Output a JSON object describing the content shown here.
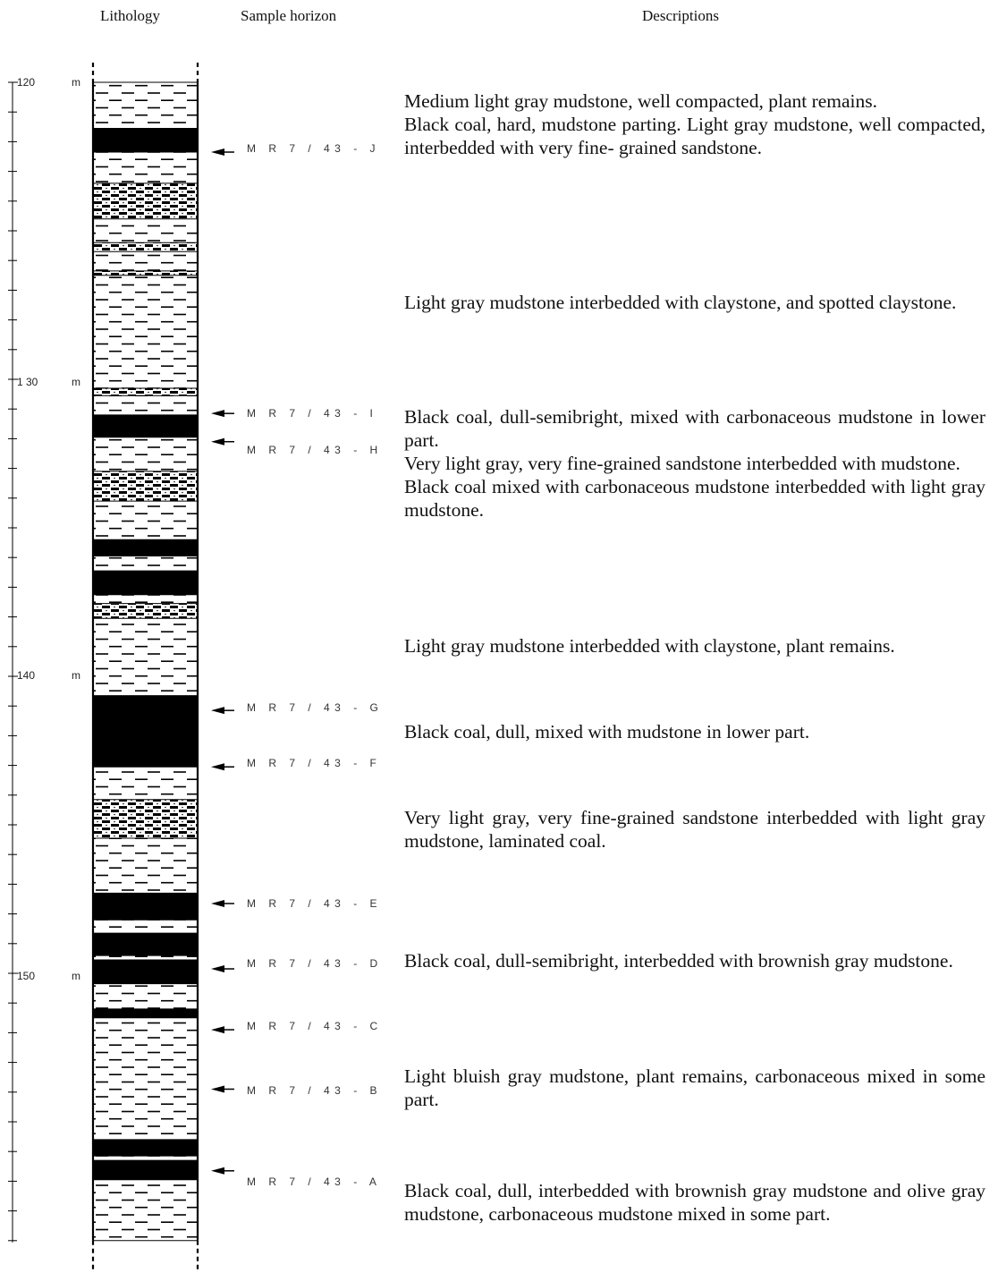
{
  "headers": {
    "lithology": "Lithology",
    "sample_horizon": "Sample horizon",
    "descriptions": "Descriptions"
  },
  "depth_scale": {
    "labels": [
      {
        "depth": 120,
        "label": "120",
        "unit": "m"
      },
      {
        "depth": 130,
        "label": "1 30",
        "unit": "m"
      },
      {
        "depth": 140,
        "label": "140",
        "unit": "m"
      },
      {
        "depth": 150,
        "label": "150",
        "unit": "m"
      }
    ]
  },
  "lithology_legend_types": [
    "mudstone",
    "coal",
    "sandstone"
  ],
  "lithology_column": [
    {
      "top": 120.0,
      "bottom": 121.55,
      "type": "mudstone"
    },
    {
      "top": 121.55,
      "bottom": 122.35,
      "type": "coal"
    },
    {
      "top": 122.35,
      "bottom": 123.4,
      "type": "mudstone"
    },
    {
      "top": 123.4,
      "bottom": 124.6,
      "type": "sandstone"
    },
    {
      "top": 124.6,
      "bottom": 125.4,
      "type": "mudstone"
    },
    {
      "top": 125.4,
      "bottom": 125.7,
      "type": "sandstone"
    },
    {
      "top": 125.7,
      "bottom": 126.35,
      "type": "mudstone"
    },
    {
      "top": 126.35,
      "bottom": 126.5,
      "type": "sandstone"
    },
    {
      "top": 126.5,
      "bottom": 130.3,
      "type": "mudstone"
    },
    {
      "top": 130.3,
      "bottom": 130.55,
      "type": "sandstone"
    },
    {
      "top": 130.55,
      "bottom": 131.2,
      "type": "mudstone"
    },
    {
      "top": 131.2,
      "bottom": 131.95,
      "type": "coal"
    },
    {
      "top": 131.95,
      "bottom": 133.1,
      "type": "mudstone"
    },
    {
      "top": 133.1,
      "bottom": 134.1,
      "type": "sandstone"
    },
    {
      "top": 134.1,
      "bottom": 135.4,
      "type": "mudstone"
    },
    {
      "top": 135.4,
      "bottom": 135.95,
      "type": "coal"
    },
    {
      "top": 135.95,
      "bottom": 136.45,
      "type": "mudstone"
    },
    {
      "top": 136.45,
      "bottom": 137.25,
      "type": "coal"
    },
    {
      "top": 137.25,
      "bottom": 137.55,
      "type": "mudstone"
    },
    {
      "top": 137.55,
      "bottom": 138.05,
      "type": "sandstone"
    },
    {
      "top": 138.05,
      "bottom": 140.65,
      "type": "mudstone"
    },
    {
      "top": 140.65,
      "bottom": 143.05,
      "type": "coal"
    },
    {
      "top": 143.05,
      "bottom": 144.15,
      "type": "mudstone"
    },
    {
      "top": 144.15,
      "bottom": 145.45,
      "type": "sandstone"
    },
    {
      "top": 145.45,
      "bottom": 147.3,
      "type": "mudstone"
    },
    {
      "top": 147.3,
      "bottom": 148.2,
      "type": "coal"
    },
    {
      "top": 148.2,
      "bottom": 148.65,
      "type": "mudstone"
    },
    {
      "top": 148.65,
      "bottom": 149.4,
      "type": "coal"
    },
    {
      "top": 149.4,
      "bottom": 149.55,
      "type": "mudstone"
    },
    {
      "top": 149.55,
      "bottom": 150.35,
      "type": "coal"
    },
    {
      "top": 150.35,
      "bottom": 151.2,
      "type": "mudstone"
    },
    {
      "top": 151.2,
      "bottom": 151.5,
      "type": "coal"
    },
    {
      "top": 151.5,
      "bottom": 155.6,
      "type": "mudstone"
    },
    {
      "top": 155.6,
      "bottom": 156.15,
      "type": "coal"
    },
    {
      "top": 156.15,
      "bottom": 156.3,
      "type": "mudstone"
    },
    {
      "top": 156.3,
      "bottom": 156.95,
      "type": "coal"
    },
    {
      "top": 156.95,
      "bottom": 159.0,
      "type": "mudstone"
    }
  ],
  "samples": [
    {
      "depth": 122.35,
      "code": "M R 7 / 43",
      "suffix": "- J"
    },
    {
      "depth": 131.15,
      "code": "M R 7 / 43",
      "suffix": "- I"
    },
    {
      "depth": 132.1,
      "code": "M R 7 / 43",
      "suffix": "- H"
    },
    {
      "depth": 141.15,
      "code": "M R 7 / 43",
      "suffix": "- G"
    },
    {
      "depth": 143.05,
      "code": "M R 7 / 43",
      "suffix": "- F"
    },
    {
      "depth": 147.65,
      "code": "M R 7 / 43",
      "suffix": "- E"
    },
    {
      "depth": 149.85,
      "code": "M R 7 / 43",
      "suffix": "- D"
    },
    {
      "depth": 151.9,
      "code": "M R 7 / 43",
      "suffix": "- C"
    },
    {
      "depth": 153.9,
      "code": "M R 7 / 43",
      "suffix": "- B"
    },
    {
      "depth": 156.65,
      "code": "M R 7 / 43",
      "suffix": "- A"
    }
  ],
  "descriptions": [
    {
      "id": "d1",
      "paragraphs": [
        "Medium light gray mudstone, well compacted, plant remains.",
        "Black coal, hard, mudstone parting. Light gray mudstone, well compacted, interbedded with very fine- grained sandstone."
      ]
    },
    {
      "id": "d2",
      "paragraphs": [
        "Light gray mudstone interbedded with claystone, and spotted claystone."
      ]
    },
    {
      "id": "d3",
      "paragraphs": [
        "Black coal, dull-semibright, mixed with carbonaceous mudstone in lower part.",
        "Very light gray, very fine-grained sandstone interbedded with mudstone.",
        "Black coal mixed with carbonaceous mudstone interbedded with light gray mudstone."
      ]
    },
    {
      "id": "d4",
      "paragraphs": [
        "Light gray mudstone interbedded with claystone, plant remains."
      ]
    },
    {
      "id": "d5",
      "paragraphs": [
        "Black coal, dull, mixed with mudstone in lower part."
      ]
    },
    {
      "id": "d6",
      "paragraphs": [
        "Very light gray, very fine-grained sandstone interbedded with light gray mudstone, laminated coal."
      ]
    },
    {
      "id": "d7",
      "paragraphs": [
        "Black coal, dull-semibright, interbedded with brownish gray mudstone."
      ]
    },
    {
      "id": "d8",
      "paragraphs": [
        "Light bluish gray mudstone, plant remains, carbonaceous mixed in some part."
      ]
    },
    {
      "id": "d9",
      "paragraphs": [
        "Black coal, dull, interbedded with brownish gray mudstone and olive gray mudstone, carbonaceous mudstone mixed in some part."
      ]
    }
  ]
}
